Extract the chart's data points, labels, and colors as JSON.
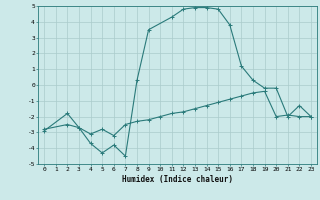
{
  "xlabel": "Humidex (Indice chaleur)",
  "xlim": [
    -0.5,
    23.5
  ],
  "ylim": [
    -5,
    5
  ],
  "background_color": "#cce9e9",
  "grid_color": "#aacccc",
  "line_color": "#2a7a7a",
  "line1_x": [
    0,
    2,
    3,
    4,
    5,
    6,
    7,
    8,
    9,
    11,
    12,
    13,
    14,
    15,
    16,
    17,
    18,
    19,
    20,
    21,
    22,
    23
  ],
  "line1_y": [
    -2.9,
    -1.8,
    -2.7,
    -3.7,
    -4.3,
    -3.8,
    -4.5,
    0.3,
    3.5,
    4.3,
    4.8,
    4.9,
    4.9,
    4.8,
    3.8,
    1.2,
    0.3,
    -0.2,
    -0.2,
    -2.0,
    -1.3,
    -2.0
  ],
  "line2_x": [
    0,
    2,
    3,
    4,
    5,
    6,
    7,
    8,
    9,
    10,
    11,
    12,
    13,
    14,
    15,
    16,
    17,
    18,
    19,
    20,
    21,
    22,
    23
  ],
  "line2_y": [
    -2.8,
    -2.5,
    -2.7,
    -3.1,
    -2.8,
    -3.2,
    -2.5,
    -2.3,
    -2.2,
    -2.0,
    -1.8,
    -1.7,
    -1.5,
    -1.3,
    -1.1,
    -0.9,
    -0.7,
    -0.5,
    -0.4,
    -2.0,
    -1.9,
    -2.0,
    -2.0
  ],
  "xtick_values": [
    0,
    1,
    2,
    3,
    4,
    5,
    6,
    7,
    8,
    9,
    10,
    11,
    12,
    13,
    14,
    15,
    16,
    17,
    18,
    19,
    20,
    21,
    22,
    23
  ],
  "xtick_labels": [
    "0",
    "1",
    "2",
    "3",
    "4",
    "5",
    "6",
    "7",
    "8",
    "9",
    "10",
    "11",
    "12",
    "13",
    "14",
    "15",
    "16",
    "17",
    "18",
    "19",
    "20",
    "21",
    "22",
    "23"
  ],
  "ytick_values": [
    -5,
    -4,
    -3,
    -2,
    -1,
    0,
    1,
    2,
    3,
    4,
    5
  ],
  "ytick_labels": [
    "-5",
    "-4",
    "-3",
    "-2",
    "-1",
    "0",
    "1",
    "2",
    "3",
    "4",
    "5"
  ]
}
